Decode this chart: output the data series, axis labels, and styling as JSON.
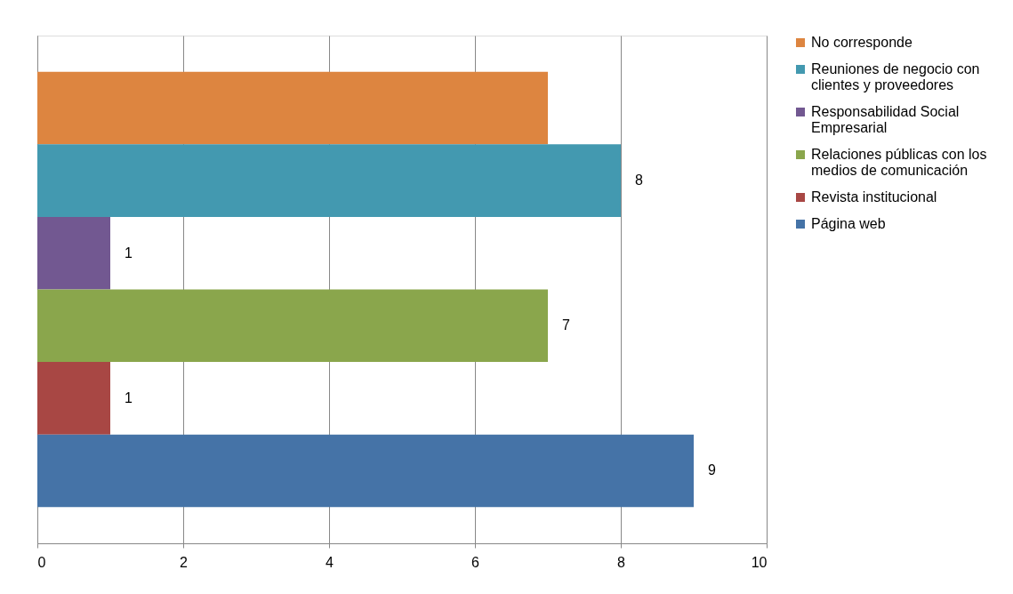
{
  "chart_data": {
    "type": "bar",
    "orientation": "horizontal",
    "categories": [
      null,
      null,
      null,
      null,
      null,
      null
    ],
    "series": [
      {
        "name": "No corresponde",
        "color": "#dd8540",
        "values": [
          7,
          null,
          null,
          null,
          null,
          null
        ],
        "value_labels": [
          null,
          null,
          null,
          null,
          null,
          null
        ]
      },
      {
        "name": "Reuniones de negocio con clientes y proveedores",
        "color": "#4399b0",
        "values": [
          null,
          8,
          null,
          null,
          null,
          null
        ],
        "value_labels": [
          null,
          "8",
          null,
          null,
          null,
          null
        ]
      },
      {
        "name": "Responsabilidad Social Empresarial",
        "color": "#725891",
        "values": [
          null,
          null,
          1,
          null,
          null,
          null
        ],
        "value_labels": [
          null,
          null,
          "1",
          null,
          null,
          null
        ]
      },
      {
        "name": "Relaciones públicas con los medios de comunicación",
        "color": "#8aa64c",
        "values": [
          null,
          null,
          null,
          7,
          null,
          null
        ],
        "value_labels": [
          null,
          null,
          null,
          "7",
          null,
          null
        ]
      },
      {
        "name": "Revista institucional",
        "color": "#a84744",
        "values": [
          null,
          null,
          null,
          null,
          1,
          null
        ],
        "value_labels": [
          null,
          null,
          null,
          null,
          "1",
          null
        ]
      },
      {
        "name": "Página web",
        "color": "#4573a7",
        "values": [
          null,
          null,
          null,
          null,
          null,
          9
        ],
        "value_labels": [
          null,
          null,
          null,
          null,
          null,
          "9"
        ]
      }
    ],
    "xlim": [
      0,
      10
    ],
    "xticks": [
      0,
      2,
      4,
      6,
      8,
      10
    ],
    "grid": "x",
    "legend": "right"
  }
}
